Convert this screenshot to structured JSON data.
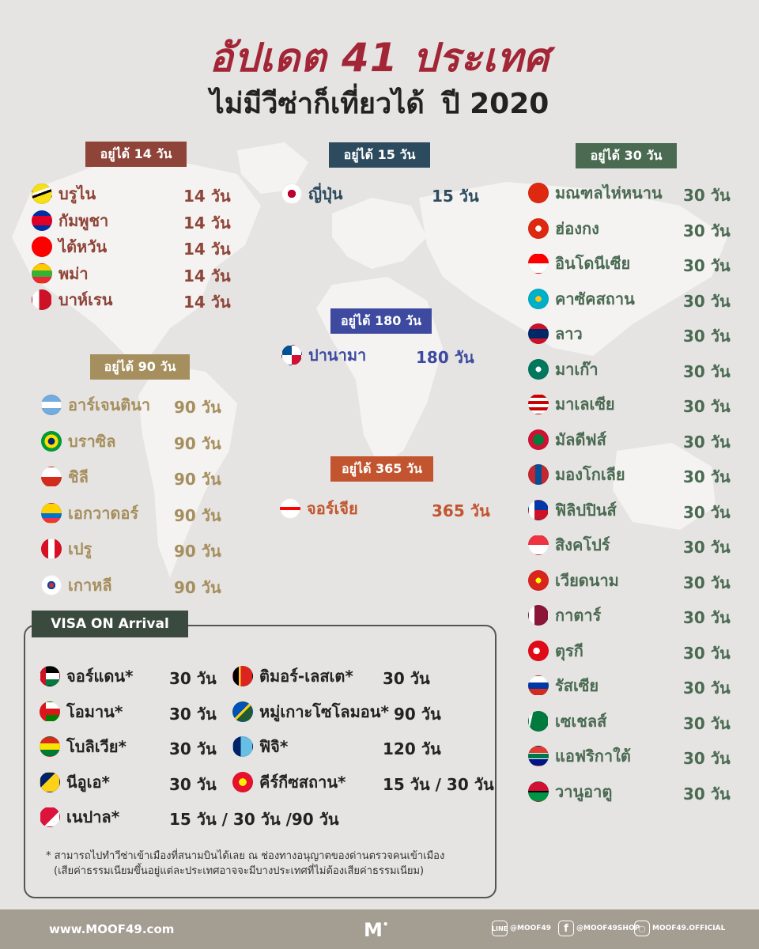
{
  "header": {
    "title": "อัปเดต 41 ประเทศ",
    "subtitle": "ไม่มีวีซ่าก็เที่ยวได้",
    "year": "ปี 2020"
  },
  "groups": {
    "d14": {
      "label": "อยู่ได้ 14 วัน",
      "items": [
        {
          "name": "บรูไน",
          "days": "14 วัน",
          "flag": "brunei"
        },
        {
          "name": "กัมพูชา",
          "days": "14 วัน",
          "flag": "cambodia"
        },
        {
          "name": "ไต้หวัน",
          "days": "14 วัน",
          "flag": "taiwan"
        },
        {
          "name": "พม่า",
          "days": "14 วัน",
          "flag": "myanmar"
        },
        {
          "name": "บาห์เรน",
          "days": "14 วัน",
          "flag": "bahrain"
        }
      ]
    },
    "d15": {
      "label": "อยู่ได้ 15 วัน",
      "items": [
        {
          "name": "ญี่ปุ่น",
          "days": "15 วัน",
          "flag": "japan"
        }
      ]
    },
    "d180": {
      "label": "อยู่ได้ 180 วัน",
      "items": [
        {
          "name": "ปานามา",
          "days": "180 วัน",
          "flag": "panama"
        }
      ]
    },
    "d365": {
      "label": "อยู่ได้ 365 วัน",
      "items": [
        {
          "name": "จอร์เจีย",
          "days": "365 วัน",
          "flag": "georgia"
        }
      ]
    },
    "d90": {
      "label": "อยู่ได้ 90 วัน",
      "items": [
        {
          "name": "อาร์เจนตินา",
          "days": "90 วัน",
          "flag": "argentina"
        },
        {
          "name": "บราซิล",
          "days": "90 วัน",
          "flag": "brazil"
        },
        {
          "name": "ชิลี",
          "days": "90 วัน",
          "flag": "chile"
        },
        {
          "name": "เอกวาดอร์",
          "days": "90 วัน",
          "flag": "ecuador"
        },
        {
          "name": "เปรู",
          "days": "90 วัน",
          "flag": "peru"
        },
        {
          "name": "เกาหลี",
          "days": "90 วัน",
          "flag": "korea"
        }
      ]
    },
    "d30": {
      "label": "อยู่ได้ 30 วัน",
      "items": [
        {
          "name": "มณฑลไห่หนาน",
          "days": "30 วัน",
          "flag": "china"
        },
        {
          "name": "ฮ่องกง",
          "days": "30 วัน",
          "flag": "hongkong"
        },
        {
          "name": "อินโดนีเซีย",
          "days": "30 วัน",
          "flag": "indonesia"
        },
        {
          "name": "คาซัคสถาน",
          "days": "30 วัน",
          "flag": "kazakhstan"
        },
        {
          "name": "ลาว",
          "days": "30 วัน",
          "flag": "laos"
        },
        {
          "name": "มาเก๊า",
          "days": "30 วัน",
          "flag": "macau"
        },
        {
          "name": "มาเลเซีย",
          "days": "30 วัน",
          "flag": "malaysia"
        },
        {
          "name": "มัลดีฟส์",
          "days": "30 วัน",
          "flag": "maldives"
        },
        {
          "name": "มองโกเลีย",
          "days": "30 วัน",
          "flag": "mongolia"
        },
        {
          "name": "ฟิลิปปินส์",
          "days": "30 วัน",
          "flag": "philippines"
        },
        {
          "name": "สิงคโปร์",
          "days": "30 วัน",
          "flag": "singapore"
        },
        {
          "name": "เวียดนาม",
          "days": "30 วัน",
          "flag": "vietnam"
        },
        {
          "name": "กาตาร์",
          "days": "30 วัน",
          "flag": "qatar"
        },
        {
          "name": "ตุรกี",
          "days": "30 วัน",
          "flag": "turkey"
        },
        {
          "name": "รัสเซีย",
          "days": "30 วัน",
          "flag": "russia"
        },
        {
          "name": "เซเชลส์",
          "days": "30 วัน",
          "flag": "seychelles"
        },
        {
          "name": "แอฟริกาใต้",
          "days": "30 วัน",
          "flag": "southafrica"
        },
        {
          "name": "วานูอาตู",
          "days": "30 วัน",
          "flag": "vanuatu"
        }
      ]
    }
  },
  "visa_on_arrival": {
    "label": "VISA ON Arrival",
    "left": [
      {
        "name": "จอร์แดน*",
        "days": "30 วัน",
        "flag": "jordan"
      },
      {
        "name": "โอมาน*",
        "days": "30 วัน",
        "flag": "oman"
      },
      {
        "name": "โบลิเวีย*",
        "days": "30 วัน",
        "flag": "bolivia"
      },
      {
        "name": "นีอูเอ*",
        "days": "30 วัน",
        "flag": "niue"
      },
      {
        "name": "เนปาล*",
        "days": "15 วัน / 30 วัน /90 วัน",
        "flag": "nepal"
      }
    ],
    "right": [
      {
        "name": "ติมอร์-เลสเต*",
        "days": "30 วัน",
        "flag": "timorleste"
      },
      {
        "name": "หมู่เกาะโซโลมอน*",
        "days": "90 วัน",
        "flag": "solomon"
      },
      {
        "name": "ฟิจิ*",
        "days": "120 วัน",
        "flag": "fiji"
      },
      {
        "name": "คีร์กีซสถาน*",
        "days": "15 วัน / 30 วัน",
        "flag": "kyrgyzstan"
      }
    ],
    "note_line1": "* สามารถไปทำวีซ่าเข้าเมืองที่สนามบินได้เลย ณ ช่องทางอนุญาตของด่านตรวจคนเข้าเมือง",
    "note_line2": "(เสียค่าธรรมเนียมขึ้นอยู่แต่ละประเทศอาจจะมีบางประเทศที่ไม่ต้องเสียค่าธรรมเนียม)"
  },
  "footer": {
    "website": "www.MOOF49.com",
    "logo": "M",
    "line": "@MOOF49",
    "facebook": "@MOOF49SHOP",
    "instagram": "MOOF49.OFFICIAL"
  },
  "colors": {
    "title_red": "#a32636",
    "tag14": "#8e4438",
    "tag15": "#2d4b5e",
    "tag30": "#4a6a52",
    "tag90": "#a68f5e",
    "tag180": "#3d4aa0",
    "tag365": "#c2552f",
    "voa": "#3a4a3e",
    "footer": "#a49d92"
  }
}
